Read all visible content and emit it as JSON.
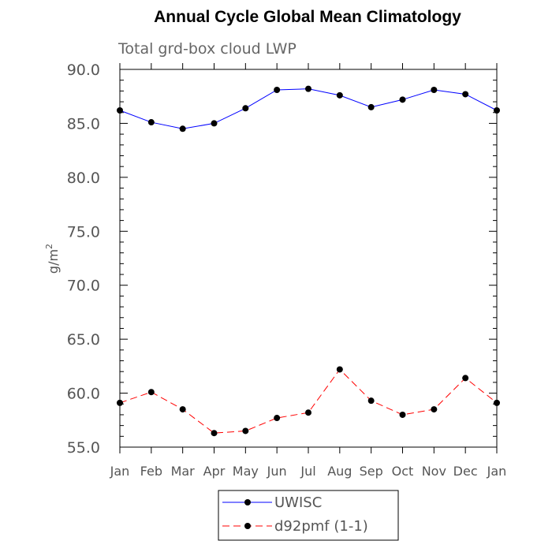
{
  "chart_data": {
    "type": "line",
    "title": "Annual Cycle Global Mean Climatology",
    "subtitle": "Total grd-box cloud LWP",
    "ylabel": "g/m",
    "ylabel_sup": "2",
    "ylim": [
      55.0,
      90.0
    ],
    "yticks": [
      "55.0",
      "60.0",
      "65.0",
      "70.0",
      "75.0",
      "80.0",
      "85.0",
      "90.0"
    ],
    "ytick_values": [
      55,
      60,
      65,
      70,
      75,
      80,
      85,
      90
    ],
    "categories": [
      "Jan",
      "Feb",
      "Mar",
      "Apr",
      "May",
      "Jun",
      "Jul",
      "Aug",
      "Sep",
      "Oct",
      "Nov",
      "Dec",
      "Jan"
    ],
    "series": [
      {
        "name": "UWISC",
        "color": "#0000ff",
        "dash": "solid",
        "values": [
          86.2,
          85.1,
          84.5,
          85.0,
          86.4,
          88.1,
          88.2,
          87.6,
          86.5,
          87.2,
          88.1,
          87.7,
          86.2
        ]
      },
      {
        "name": "d92pmf (1-1)",
        "color": "#ff0000",
        "dash": "dashed",
        "values": [
          59.1,
          60.1,
          58.5,
          56.3,
          56.5,
          57.7,
          58.2,
          62.2,
          59.3,
          58.0,
          58.5,
          61.4,
          59.1
        ]
      }
    ],
    "grid": false,
    "legend_position": "bottom"
  }
}
